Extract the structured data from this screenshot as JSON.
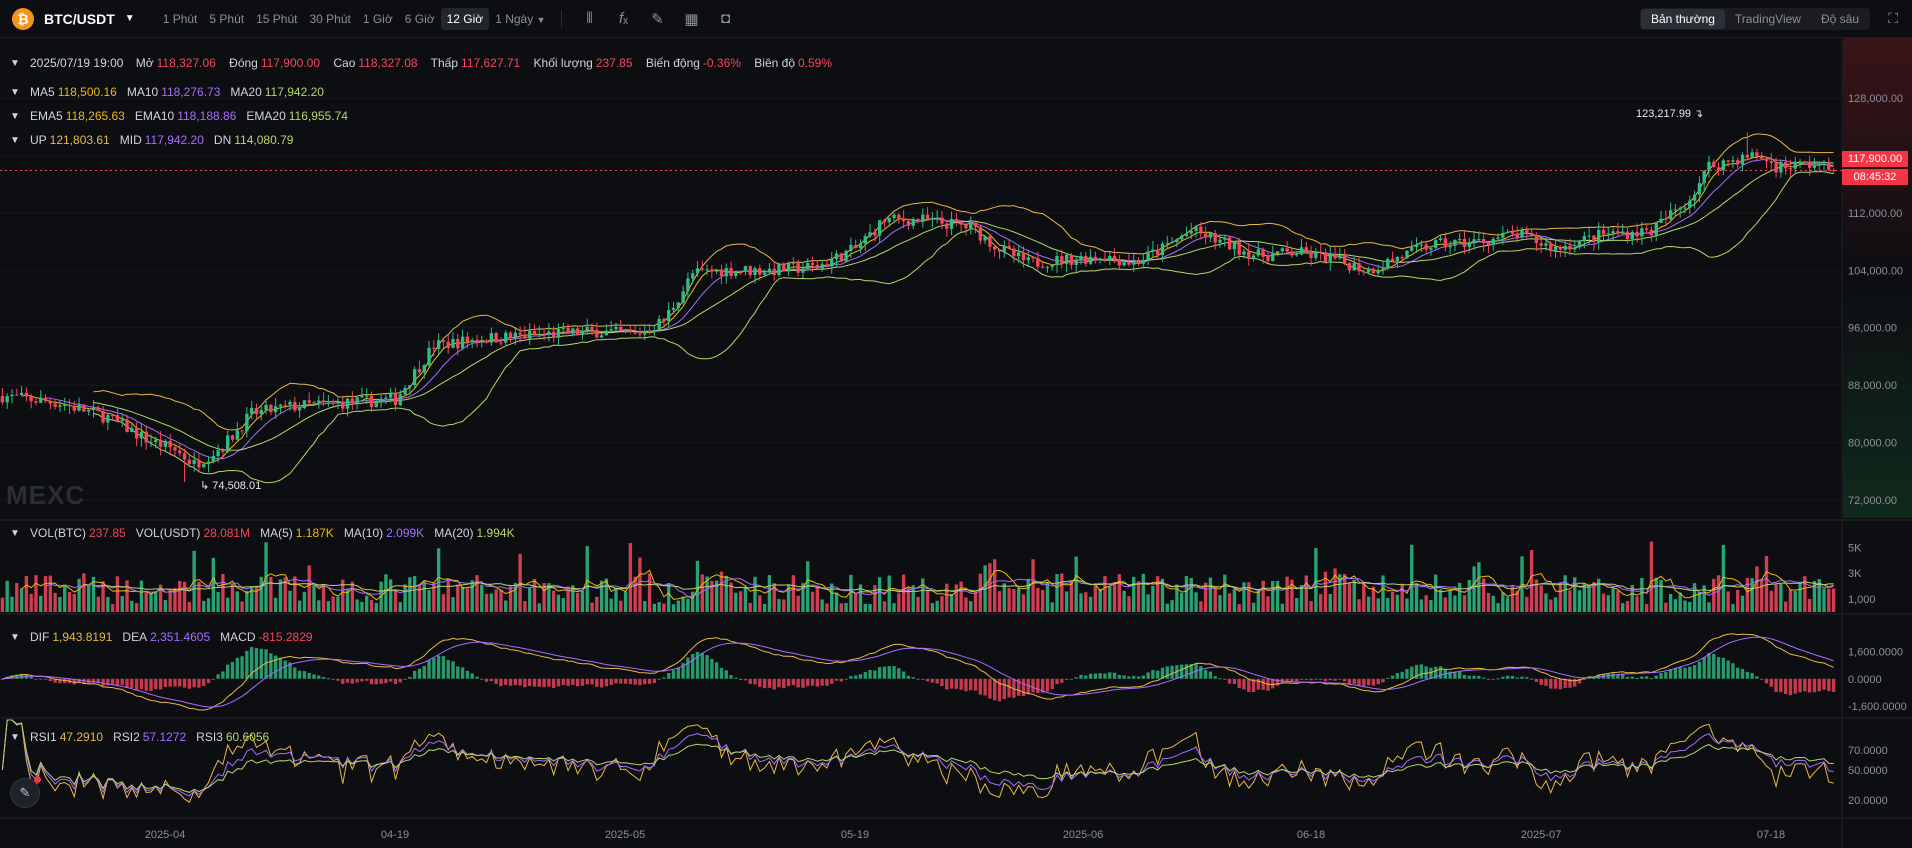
{
  "toolbar": {
    "coin_icon": "bitcoin-icon",
    "coin_glyph": "₿",
    "pair": "BTC/USDT",
    "intervals": [
      "1 Phút",
      "5 Phút",
      "15 Phút",
      "30 Phút",
      "1 Giờ",
      "6 Giờ",
      "12 Giờ",
      "1 Ngày"
    ],
    "active_interval": "12 Giờ",
    "tools": [
      "candle-type-icon",
      "indicator-fx-icon",
      "draw-pencil-icon",
      "layout-grid-icon",
      "screenshot-camera-icon"
    ],
    "views": [
      "Bản thường",
      "TradingView",
      "Độ sâu"
    ],
    "active_view": "Bản thường",
    "fullscreen_icon": "fullscreen-icon"
  },
  "ohlc": {
    "date": "2025/07/19 19:00",
    "open_label": "Mở",
    "open": "118,327.06",
    "close_label": "Đóng",
    "close": "117,900.00",
    "high_label": "Cao",
    "high": "118,327.08",
    "low_label": "Thấp",
    "low": "117,627.71",
    "volume_label": "Khối lượng",
    "volume": "237.85",
    "change_label": "Biến động",
    "change": "-0.36%",
    "amplitude_label": "Biên độ",
    "amplitude": "0.59%"
  },
  "ma": {
    "ma5_label": "MA5",
    "ma5": "118,500.16",
    "ma10_label": "MA10",
    "ma10": "118,276.73",
    "ma20_label": "MA20",
    "ma20": "117,942.20"
  },
  "ema": {
    "ema5_label": "EMA5",
    "ema5": "118,265.63",
    "ema10_label": "EMA10",
    "ema10": "118,188.86",
    "ema20_label": "EMA20",
    "ema20": "116,955.74"
  },
  "boll": {
    "up_label": "UP",
    "up": "121,803.61",
    "mid_label": "MID",
    "mid": "117,942.20",
    "dn_label": "DN",
    "dn": "114,080.79"
  },
  "vol": {
    "btc_label": "VOL(BTC)",
    "btc": "237.85",
    "usdt_label": "VOL(USDT)",
    "usdt": "28.081M",
    "ma5_label": "MA(5)",
    "ma5": "1.187K",
    "ma10_label": "MA(10)",
    "ma10": "2.099K",
    "ma20_label": "MA(20)",
    "ma20": "1.994K"
  },
  "macd": {
    "dif_label": "DIF",
    "dif": "1,943.8191",
    "dea_label": "DEA",
    "dea": "2,351.4605",
    "macd_label": "MACD",
    "macd": "-815.2829"
  },
  "rsi": {
    "rsi1_label": "RSI1",
    "rsi1": "47.2910",
    "rsi2_label": "RSI2",
    "rsi2": "57.1272",
    "rsi3_label": "RSI3",
    "rsi3": "60.6056"
  },
  "price_tag": {
    "price": "117,900.00",
    "countdown": "08:45:32"
  },
  "extremes": {
    "high": "123,217.99",
    "low": "74,508.01"
  },
  "watermark": "MEXC",
  "colors": {
    "up": "#2ebd85",
    "down": "#f6465d",
    "ma5": "#f0b90b",
    "ma10": "#a66cff",
    "ma20": "#b5d66a",
    "ema5": "#f0b90b",
    "ema10": "#a66cff",
    "ema20": "#b5d66a",
    "boll_up": "#e9b74a",
    "boll_mid": "#a66cff",
    "boll_dn": "#b5d66a",
    "rsi1": "#e9b74a",
    "rsi2": "#a66cff",
    "rsi3": "#b5d66a"
  },
  "chart_data": {
    "type": "candlestick",
    "price_axis": {
      "ticks": [
        "128,000.00",
        "120,000.00",
        "112,000.00",
        "104,000.00",
        "96,000.00",
        "88,000.00",
        "80,000.00",
        "72,000.00"
      ],
      "values": [
        128000,
        120000,
        112000,
        104000,
        96000,
        88000,
        80000,
        72000
      ],
      "range": [
        69500,
        130500
      ]
    },
    "volume_axis": {
      "ticks": [
        "5K",
        "3K",
        "1,000"
      ],
      "values": [
        5000,
        3000,
        1000
      ],
      "range": [
        0,
        6500
      ]
    },
    "macd_axis": {
      "ticks": [
        "1,600.0000",
        "0.0000",
        "-1,600.0000"
      ],
      "values": [
        1600,
        0,
        -1600
      ],
      "range": [
        -2200,
        3000
      ]
    },
    "rsi_axis": {
      "ticks": [
        "70.0000",
        "50.0000",
        "20.0000"
      ],
      "values": [
        70,
        50,
        20
      ],
      "range": [
        8,
        92
      ]
    },
    "time_axis": [
      "2025-04",
      "04-19",
      "2025-05",
      "05-19",
      "2025-06",
      "06-18",
      "2025-07",
      "07-18"
    ],
    "last_price": 117900,
    "high_point": 123217.99,
    "low_point": 74508.01,
    "trend_keypoints": [
      [
        0,
        86500
      ],
      [
        12,
        85500
      ],
      [
        22,
        83500
      ],
      [
        30,
        80500
      ],
      [
        36,
        79000
      ],
      [
        40,
        77000
      ],
      [
        46,
        79500
      ],
      [
        52,
        84000
      ],
      [
        60,
        85000
      ],
      [
        70,
        85500
      ],
      [
        82,
        86000
      ],
      [
        90,
        93500
      ],
      [
        100,
        94500
      ],
      [
        112,
        95000
      ],
      [
        124,
        95500
      ],
      [
        132,
        95000
      ],
      [
        138,
        97000
      ],
      [
        144,
        103500
      ],
      [
        150,
        104000
      ],
      [
        160,
        104000
      ],
      [
        170,
        104500
      ],
      [
        178,
        107000
      ],
      [
        184,
        111000
      ],
      [
        192,
        111000
      ],
      [
        202,
        110000
      ],
      [
        208,
        107000
      ],
      [
        214,
        105000
      ],
      [
        222,
        105500
      ],
      [
        230,
        106000
      ],
      [
        236,
        105000
      ],
      [
        242,
        107000
      ],
      [
        248,
        109500
      ],
      [
        254,
        108000
      ],
      [
        262,
        106000
      ],
      [
        270,
        106500
      ],
      [
        278,
        105500
      ],
      [
        285,
        104000
      ],
      [
        290,
        105500
      ],
      [
        298,
        107500
      ],
      [
        308,
        108000
      ],
      [
        316,
        109000
      ],
      [
        324,
        107000
      ],
      [
        334,
        109000
      ],
      [
        344,
        109500
      ],
      [
        352,
        114000
      ],
      [
        356,
        118500
      ],
      [
        362,
        119500
      ],
      [
        366,
        120000
      ],
      [
        370,
        118500
      ],
      [
        378,
        118800
      ],
      [
        382,
        117900
      ]
    ]
  }
}
